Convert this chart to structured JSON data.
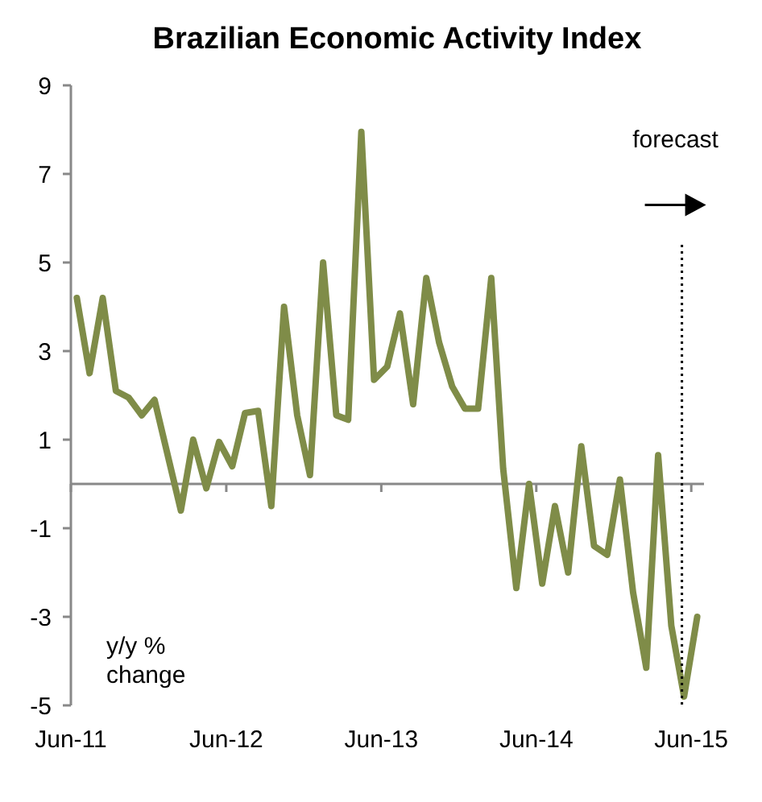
{
  "chart_data": {
    "type": "line",
    "title": "Brazilian Economic Activity Index",
    "ylabel": "y/y % change",
    "x": [
      "2011-06-15",
      "2011-07-15",
      "2011-08-15",
      "2011-09-15",
      "2011-10-15",
      "2011-11-15",
      "2011-12-15",
      "2012-01-15",
      "2012-02-15",
      "2012-03-15",
      "2012-04-15",
      "2012-05-15",
      "2012-06-15",
      "2012-07-15",
      "2012-08-15",
      "2012-09-15",
      "2012-10-15",
      "2012-11-15",
      "2012-12-15",
      "2013-01-15",
      "2013-02-15",
      "2013-03-15",
      "2013-04-15",
      "2013-05-15",
      "2013-06-15",
      "2013-07-15",
      "2013-08-15",
      "2013-09-15",
      "2013-10-15",
      "2013-11-15",
      "2013-12-15",
      "2014-01-15",
      "2014-02-15",
      "2014-03-15",
      "2014-04-15",
      "2014-05-15",
      "2014-06-15",
      "2014-07-15",
      "2014-08-15",
      "2014-09-15",
      "2014-10-15",
      "2014-11-15",
      "2014-12-15",
      "2015-01-15",
      "2015-02-15",
      "2015-03-15",
      "2015-04-15",
      "2015-05-15",
      "2015-06-15"
    ],
    "series": [
      {
        "color": "#7f8c48",
        "values": [
          4.2,
          2.5,
          4.2,
          2.1,
          1.95,
          1.55,
          1.9,
          0.65,
          -0.6,
          1.0,
          -0.1,
          0.95,
          0.4,
          1.6,
          1.65,
          -0.5,
          4.0,
          1.55,
          0.2,
          5.0,
          1.55,
          1.45,
          7.95,
          2.35,
          2.65,
          3.85,
          1.8,
          4.65,
          3.2,
          2.2,
          1.7,
          1.7,
          4.65,
          0.35,
          -2.35,
          0.0,
          -2.25,
          -0.5,
          -2.0,
          0.85,
          -1.4,
          -1.6,
          0.1,
          -2.45,
          -4.15,
          0.65,
          -3.2,
          -4.8,
          -3.0
        ]
      }
    ],
    "xlim": [
      "2011-06",
      "2015-07"
    ],
    "xticks": [
      {
        "value": "2011-06",
        "label": "Jun-11"
      },
      {
        "value": "2012-06",
        "label": "Jun-12"
      },
      {
        "value": "2013-06",
        "label": "Jun-13"
      },
      {
        "value": "2014-06",
        "label": "Jun-14"
      },
      {
        "value": "2015-06",
        "label": "Jun-15"
      }
    ],
    "ylim": [
      -5,
      9
    ],
    "yticks": [
      -5,
      -3,
      -1,
      1,
      3,
      5,
      7,
      9
    ],
    "ref_lines": [
      {
        "axis": "x",
        "value": "2015-05-10",
        "label": "forecast",
        "color": "#000000",
        "line_style": "dotted"
      }
    ],
    "grid": false,
    "marker": "none",
    "line_style": "solid"
  }
}
